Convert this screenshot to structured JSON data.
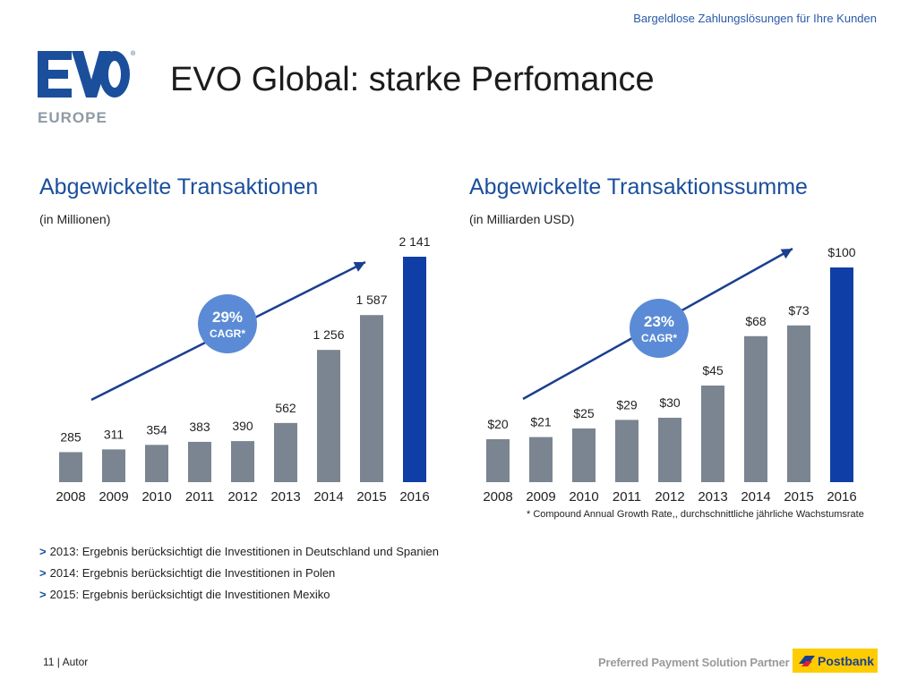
{
  "header": {
    "tagline": "Bargeldlose Zahlungslösungen für Ihre Kunden",
    "title": "EVO Global: starke Perfomance",
    "logo_subtext": "EUROPE"
  },
  "colors": {
    "bar_gray": "#7a8591",
    "bar_highlight": "#0f3fa6",
    "badge": "#5b8bd6",
    "arrow": "#1b3f8f",
    "title_blue": "#1b4f9c"
  },
  "chart_data": [
    {
      "type": "bar",
      "title": "Abgewickelte Transaktionen",
      "subtitle": "(in Millionen)",
      "categories": [
        "2008",
        "2009",
        "2010",
        "2011",
        "2012",
        "2013",
        "2014",
        "2015",
        "2016"
      ],
      "values": [
        285,
        311,
        354,
        383,
        390,
        562,
        1256,
        1587,
        2141
      ],
      "value_labels": [
        "285",
        "311",
        "354",
        "383",
        "390",
        "562",
        "1 256",
        "1 587",
        "2 141"
      ],
      "highlight_index": 8,
      "cagr_badge": {
        "value": "29%",
        "label": "CAGR*"
      }
    },
    {
      "type": "bar",
      "title": "Abgewickelte Transaktionssumme",
      "subtitle": "(in Milliarden USD)",
      "categories": [
        "2008",
        "2009",
        "2010",
        "2011",
        "2012",
        "2013",
        "2014",
        "2015",
        "2016"
      ],
      "values": [
        20,
        21,
        25,
        29,
        30,
        45,
        68,
        73,
        100
      ],
      "value_labels": [
        "$20",
        "$21",
        "$25",
        "$29",
        "$30",
        "$45",
        "$68",
        "$73",
        "$100"
      ],
      "highlight_index": 8,
      "cagr_badge": {
        "value": "23%",
        "label": "CAGR*"
      }
    }
  ],
  "footnote": "* Compound Annual Growth Rate,, durchschnittliche jährliche Wachstumsrate",
  "notes": [
    {
      "marker": ">",
      "text": "2013: Ergebnis berücksichtigt die Investitionen in Deutschland und Spanien"
    },
    {
      "marker": ">",
      "text": "2014: Ergebnis berücksichtigt die Investitionen in Polen"
    },
    {
      "marker": ">",
      "text": "2015: Ergebnis berücksichtigt die Investitionen Mexiko"
    }
  ],
  "footer": {
    "page": "11 | Autor",
    "partner": "Preferred Payment Solution Partner for",
    "brand": "Postbank"
  }
}
